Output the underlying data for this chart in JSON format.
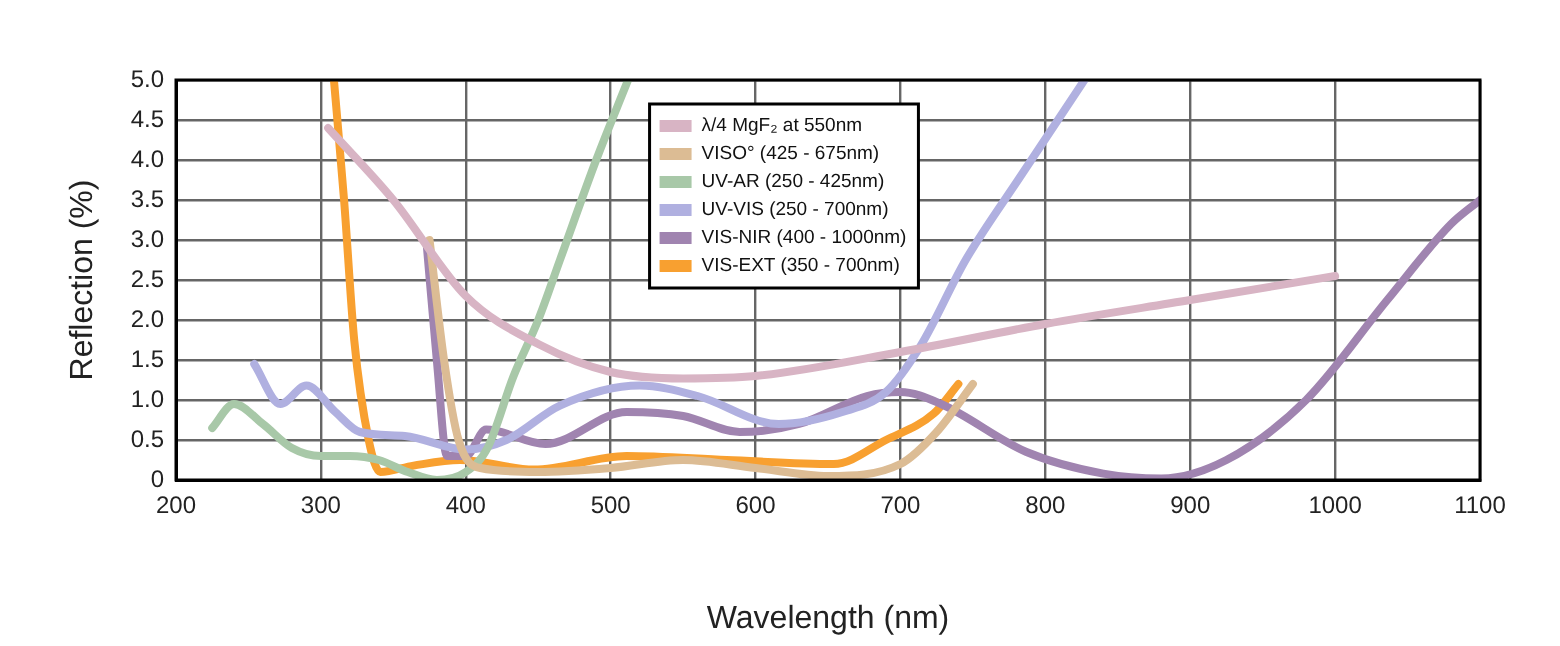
{
  "chart_data": {
    "type": "line",
    "xlabel": "Wavelength (nm)",
    "ylabel": "Reflection (%)",
    "xlim": [
      200,
      1100
    ],
    "xticks": [
      200,
      300,
      400,
      500,
      600,
      700,
      800,
      900,
      1000,
      1100
    ],
    "ylim": [
      0,
      5
    ],
    "yticks": [
      0,
      0.5,
      {
        "value": 1,
        "label": "1.0"
      },
      1.5,
      {
        "value": 2,
        "label": "2.0"
      },
      2.5,
      {
        "value": 3,
        "label": "3.0"
      },
      3.5,
      {
        "value": 4,
        "label": "4.0"
      },
      4.5,
      {
        "value": 5,
        "label": "5.0"
      }
    ],
    "grid": true,
    "legend": "top",
    "marker": "none",
    "line_style": "solid",
    "series": [
      {
        "name": "λ/4 MgF₂ at 550nm",
        "color": "#d8b4c4",
        "x": [
          305,
          350,
          400,
          450,
          500,
          550,
          600,
          700,
          800,
          900,
          1000
        ],
        "values": [
          4.4,
          3.5,
          2.3,
          1.7,
          1.35,
          1.27,
          1.3,
          1.6,
          1.95,
          2.25,
          2.55
        ]
      },
      {
        "name": "VISO° (425 - 675nm)",
        "color": "#dcbc94",
        "x": [
          375,
          385,
          395,
          410,
          450,
          500,
          550,
          600,
          650,
          700,
          725,
          750
        ],
        "values": [
          3.0,
          1.5,
          0.5,
          0.15,
          0.1,
          0.15,
          0.25,
          0.15,
          0.05,
          0.2,
          0.6,
          1.2
        ]
      },
      {
        "name": "UV-AR (250 - 425nm)",
        "color": "#a8c8a8",
        "x": [
          225,
          240,
          260,
          280,
          300,
          320,
          340,
          360,
          380,
          400,
          415,
          433,
          450,
          465,
          490,
          512
        ],
        "values": [
          0.65,
          0.95,
          0.7,
          0.4,
          0.3,
          0.3,
          0.25,
          0.1,
          0.0,
          0.1,
          0.4,
          1.3,
          2.0,
          2.75,
          4.0,
          5.0
        ]
      },
      {
        "name": "UV-VIS (250 - 700nm)",
        "color": "#b0b0e0",
        "x": [
          254,
          272,
          290,
          310,
          327,
          358,
          400,
          428,
          465,
          520,
          560,
          616,
          660,
          690,
          714,
          745,
          783,
          827
        ],
        "values": [
          1.45,
          0.95,
          1.18,
          0.85,
          0.6,
          0.55,
          0.38,
          0.5,
          0.93,
          1.18,
          1.05,
          0.7,
          0.85,
          1.1,
          1.68,
          2.75,
          3.8,
          5.0
        ]
      },
      {
        "name": "VIS-NIR (400 - 1000nm)",
        "color": "#a084b0",
        "x": [
          373,
          380,
          387,
          400,
          414,
          455,
          511,
          550,
          589,
          630,
          677,
          700,
          728,
          787,
          840,
          880,
          925,
          980,
          1036,
          1080,
          1100
        ],
        "values": [
          2.95,
          1.5,
          0.3,
          0.3,
          0.63,
          0.45,
          0.85,
          0.8,
          0.6,
          0.7,
          1.05,
          1.1,
          0.95,
          0.35,
          0.08,
          0.02,
          0.25,
          1.0,
          2.25,
          3.2,
          3.5
        ]
      },
      {
        "name": "VIS-EXT (350 - 700nm)",
        "color": "#f8a030",
        "x": [
          309,
          316,
          323,
          333,
          341,
          364,
          396,
          447,
          511,
          580,
          654,
          690,
          723,
          740
        ],
        "values": [
          5.0,
          3.5,
          1.75,
          0.5,
          0.1,
          0.18,
          0.25,
          0.13,
          0.3,
          0.25,
          0.2,
          0.5,
          0.83,
          1.2
        ]
      }
    ]
  }
}
